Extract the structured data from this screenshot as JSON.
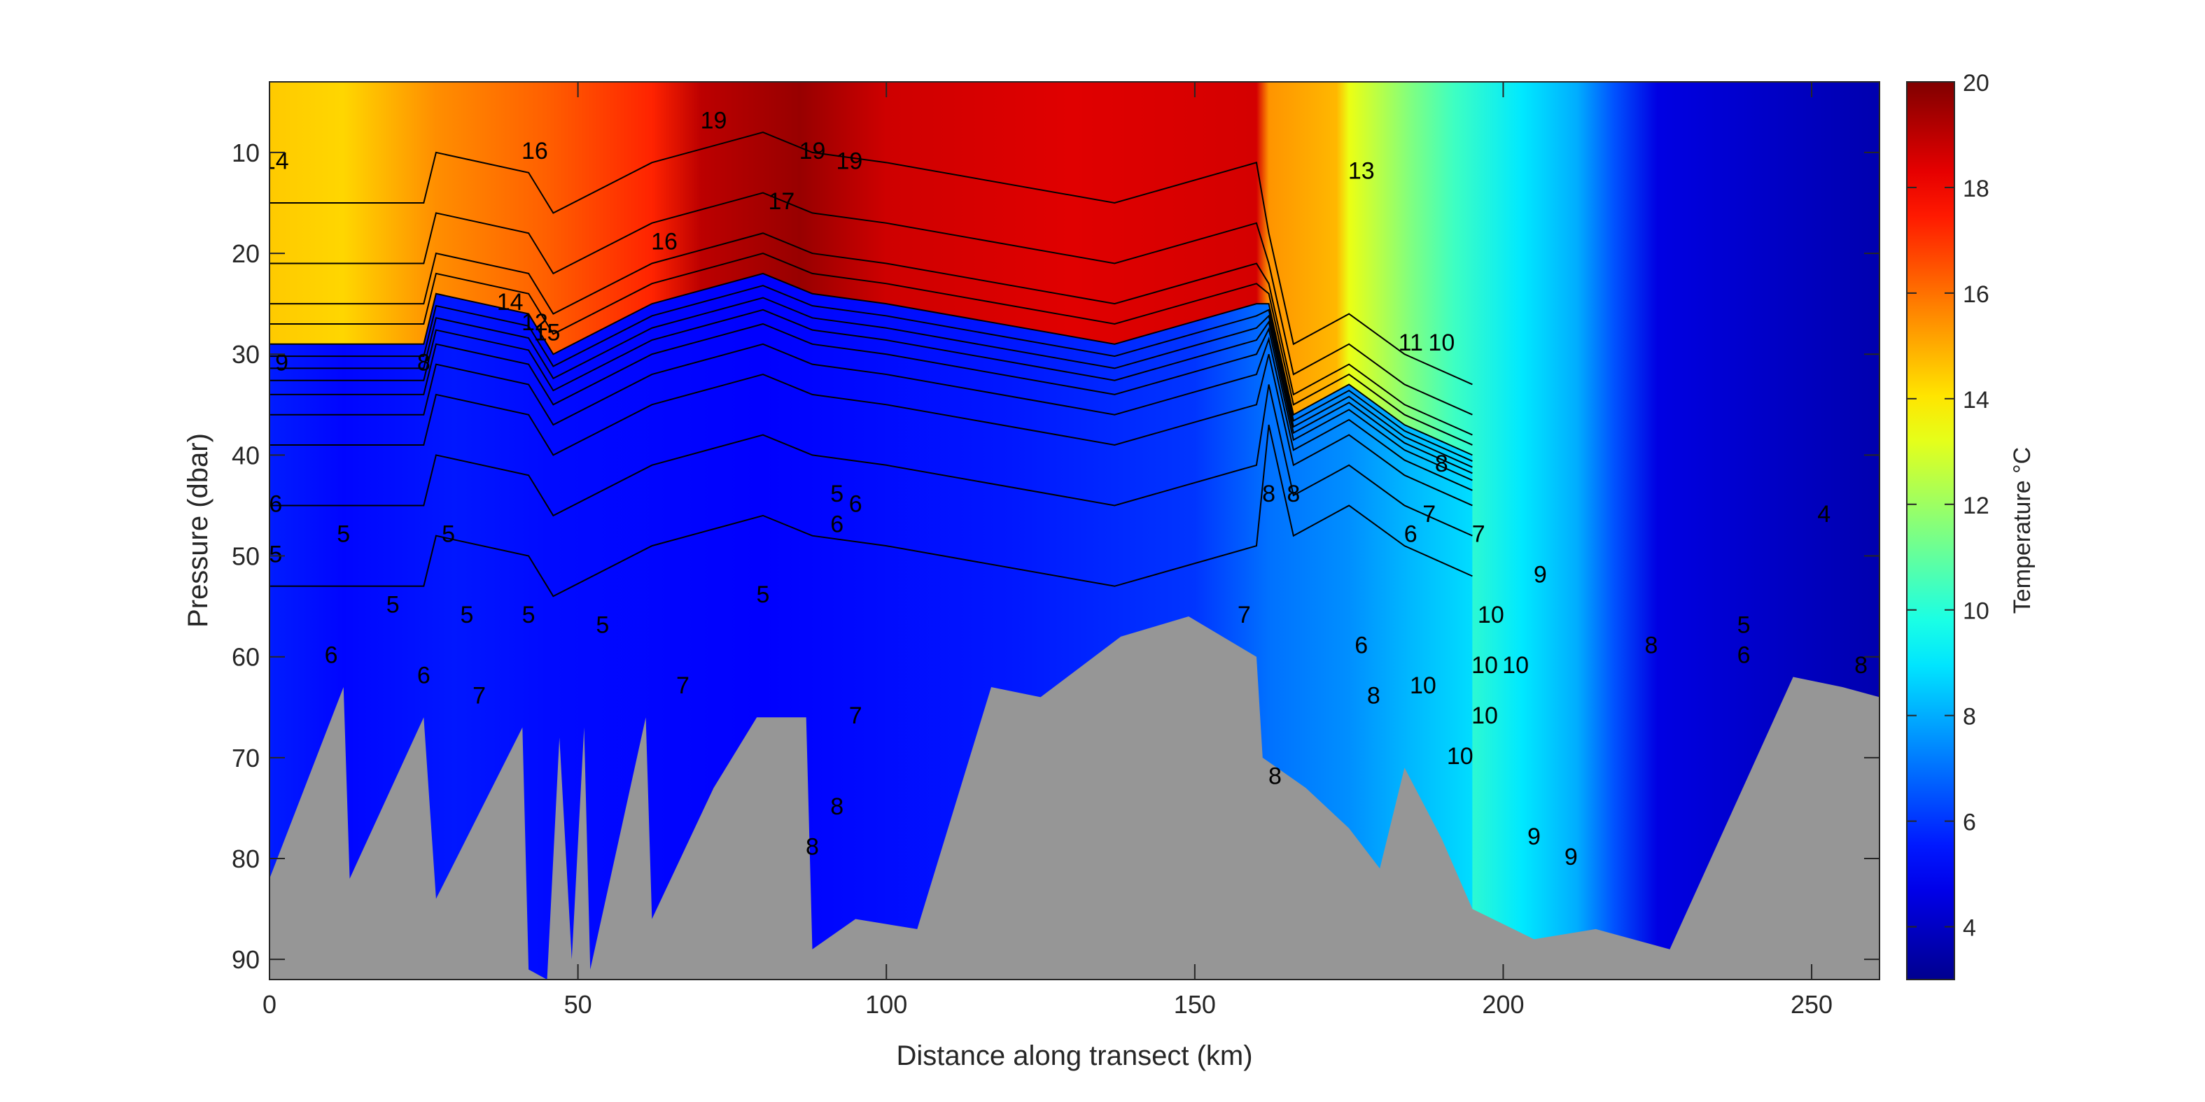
{
  "chart_data": {
    "type": "heatmap",
    "subtype": "filled contour section with contour lines and bathymetry mask",
    "xlabel": "Distance along transect (km)",
    "ylabel": "Pressure (dbar)",
    "xlim": [
      0,
      261
    ],
    "ylim": [
      92,
      3
    ],
    "y_reversed": true,
    "x_ticks": [
      0,
      50,
      100,
      150,
      200,
      250
    ],
    "y_ticks": [
      10,
      20,
      30,
      40,
      50,
      60,
      70,
      80,
      90
    ],
    "grid": false,
    "colorbar": {
      "label": "Temperature °C",
      "range": [
        3,
        20
      ],
      "ticks": [
        4,
        6,
        8,
        10,
        12,
        14,
        16,
        18,
        20
      ],
      "colormap": "jet",
      "colormap_stops": [
        "#00008f",
        "#0000ff",
        "#00ffff",
        "#ffff00",
        "#ff0000",
        "#800000"
      ]
    },
    "mask_color": "#969696",
    "surface_temperature": [
      {
        "x": 0,
        "t": 14.5
      },
      {
        "x": 12,
        "t": 14.3
      },
      {
        "x": 27,
        "t": 15.5
      },
      {
        "x": 45,
        "t": 16.3
      },
      {
        "x": 62,
        "t": 17.3
      },
      {
        "x": 70,
        "t": 19.0
      },
      {
        "x": 86,
        "t": 19.6
      },
      {
        "x": 100,
        "t": 18.7
      },
      {
        "x": 130,
        "t": 18.4
      },
      {
        "x": 160,
        "t": 18.6
      },
      {
        "x": 162,
        "t": 15.4
      },
      {
        "x": 173,
        "t": 14.8
      },
      {
        "x": 175,
        "t": 13.3
      },
      {
        "x": 185,
        "t": 11.5
      },
      {
        "x": 192,
        "t": 10.4
      },
      {
        "x": 203,
        "t": 9.0
      },
      {
        "x": 212,
        "t": 8.0
      },
      {
        "x": 218,
        "t": 6.5
      },
      {
        "x": 225,
        "t": 4.6
      },
      {
        "x": 245,
        "t": 4.0
      },
      {
        "x": 261,
        "t": 3.6
      }
    ],
    "thermocline_depth": [
      {
        "x": 0,
        "p": 29
      },
      {
        "x": 25,
        "p": 29
      },
      {
        "x": 27,
        "p": 24
      },
      {
        "x": 42,
        "p": 26
      },
      {
        "x": 46,
        "p": 30
      },
      {
        "x": 62,
        "p": 25
      },
      {
        "x": 80,
        "p": 22
      },
      {
        "x": 88,
        "p": 24
      },
      {
        "x": 100,
        "p": 25
      },
      {
        "x": 137,
        "p": 29
      },
      {
        "x": 160,
        "p": 25
      },
      {
        "x": 162,
        "p": 25
      },
      {
        "x": 166,
        "p": 36
      },
      {
        "x": 175,
        "p": 33
      },
      {
        "x": 184,
        "p": 37
      },
      {
        "x": 195,
        "p": 40
      }
    ],
    "bottom_depth": [
      {
        "x": 0,
        "p": 82
      },
      {
        "x": 12,
        "p": 63
      },
      {
        "x": 13,
        "p": 82
      },
      {
        "x": 25,
        "p": 66
      },
      {
        "x": 27,
        "p": 84
      },
      {
        "x": 41,
        "p": 67
      },
      {
        "x": 42,
        "p": 91
      },
      {
        "x": 45,
        "p": 92
      },
      {
        "x": 47,
        "p": 68
      },
      {
        "x": 49,
        "p": 90
      },
      {
        "x": 51,
        "p": 67
      },
      {
        "x": 52,
        "p": 91
      },
      {
        "x": 61,
        "p": 66
      },
      {
        "x": 62,
        "p": 86
      },
      {
        "x": 72,
        "p": 73
      },
      {
        "x": 79,
        "p": 66
      },
      {
        "x": 87,
        "p": 66
      },
      {
        "x": 88,
        "p": 89
      },
      {
        "x": 95,
        "p": 86
      },
      {
        "x": 105,
        "p": 87
      },
      {
        "x": 117,
        "p": 63
      },
      {
        "x": 125,
        "p": 64
      },
      {
        "x": 138,
        "p": 58
      },
      {
        "x": 149,
        "p": 56
      },
      {
        "x": 160,
        "p": 60
      },
      {
        "x": 161,
        "p": 70
      },
      {
        "x": 168,
        "p": 73
      },
      {
        "x": 175,
        "p": 77
      },
      {
        "x": 180,
        "p": 81
      },
      {
        "x": 184,
        "p": 71
      },
      {
        "x": 190,
        "p": 78
      },
      {
        "x": 195,
        "p": 85
      },
      {
        "x": 205,
        "p": 88
      },
      {
        "x": 215,
        "p": 87
      },
      {
        "x": 227,
        "p": 89
      },
      {
        "x": 247,
        "p": 62
      },
      {
        "x": 255,
        "p": 63
      },
      {
        "x": 261,
        "p": 64
      }
    ],
    "contour_labels": [
      {
        "text": "14",
        "x": 1,
        "p": 11
      },
      {
        "text": "16",
        "x": 43,
        "p": 10
      },
      {
        "text": "19",
        "x": 72,
        "p": 7
      },
      {
        "text": "19",
        "x": 88,
        "p": 10
      },
      {
        "text": "19",
        "x": 94,
        "p": 11
      },
      {
        "text": "17",
        "x": 83,
        "p": 15
      },
      {
        "text": "16",
        "x": 64,
        "p": 19
      },
      {
        "text": "13",
        "x": 177,
        "p": 12
      },
      {
        "text": "10",
        "x": 190,
        "p": 29
      },
      {
        "text": "11",
        "x": 185,
        "p": 29
      },
      {
        "text": "14",
        "x": 39,
        "p": 25
      },
      {
        "text": "12",
        "x": 43,
        "p": 27
      },
      {
        "text": "15",
        "x": 45,
        "p": 28
      },
      {
        "text": "8",
        "x": 25,
        "p": 31
      },
      {
        "text": "9",
        "x": 2,
        "p": 31
      },
      {
        "text": "6",
        "x": 1,
        "p": 45
      },
      {
        "text": "5",
        "x": 12,
        "p": 48
      },
      {
        "text": "5",
        "x": 29,
        "p": 48
      },
      {
        "text": "5",
        "x": 1,
        "p": 50
      },
      {
        "text": "5",
        "x": 20,
        "p": 55
      },
      {
        "text": "5",
        "x": 32,
        "p": 56
      },
      {
        "text": "5",
        "x": 42,
        "p": 56
      },
      {
        "text": "5",
        "x": 54,
        "p": 57
      },
      {
        "text": "6",
        "x": 10,
        "p": 60
      },
      {
        "text": "6",
        "x": 25,
        "p": 62
      },
      {
        "text": "7",
        "x": 34,
        "p": 64
      },
      {
        "text": "7",
        "x": 67,
        "p": 63
      },
      {
        "text": "5",
        "x": 80,
        "p": 54
      },
      {
        "text": "5",
        "x": 92,
        "p": 44
      },
      {
        "text": "6",
        "x": 95,
        "p": 45
      },
      {
        "text": "6",
        "x": 92,
        "p": 47
      },
      {
        "text": "7",
        "x": 95,
        "p": 66
      },
      {
        "text": "8",
        "x": 92,
        "p": 75
      },
      {
        "text": "8",
        "x": 88,
        "p": 79
      },
      {
        "text": "7",
        "x": 158,
        "p": 56
      },
      {
        "text": "8",
        "x": 166,
        "p": 44
      },
      {
        "text": "8",
        "x": 162,
        "p": 44
      },
      {
        "text": "6",
        "x": 177,
        "p": 59
      },
      {
        "text": "8",
        "x": 179,
        "p": 64
      },
      {
        "text": "6",
        "x": 185,
        "p": 48
      },
      {
        "text": "7",
        "x": 188,
        "p": 46
      },
      {
        "text": "7",
        "x": 196,
        "p": 48
      },
      {
        "text": "8",
        "x": 190,
        "p": 41
      },
      {
        "text": "9",
        "x": 206,
        "p": 52
      },
      {
        "text": "10",
        "x": 198,
        "p": 56
      },
      {
        "text": "10",
        "x": 197,
        "p": 61
      },
      {
        "text": "10",
        "x": 202,
        "p": 61
      },
      {
        "text": "10",
        "x": 187,
        "p": 63
      },
      {
        "text": "10",
        "x": 197,
        "p": 66
      },
      {
        "text": "10",
        "x": 193,
        "p": 70
      },
      {
        "text": "9",
        "x": 205,
        "p": 78
      },
      {
        "text": "9",
        "x": 211,
        "p": 80
      },
      {
        "text": "8",
        "x": 224,
        "p": 59
      },
      {
        "text": "5",
        "x": 239,
        "p": 57
      },
      {
        "text": "6",
        "x": 239,
        "p": 60
      },
      {
        "text": "8",
        "x": 258,
        "p": 61
      },
      {
        "text": "4",
        "x": 252,
        "p": 46
      },
      {
        "text": "8",
        "x": 163,
        "p": 72
      }
    ]
  }
}
